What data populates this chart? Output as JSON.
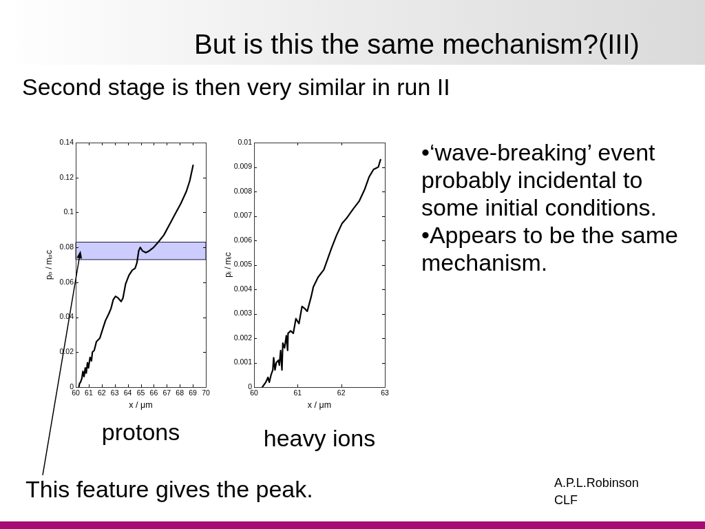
{
  "chart_data": [
    {
      "type": "other",
      "title": "But is this the same mechanism?(III)",
      "subtitle": "Second stage is then very similar in run II",
      "annotations": [
        "•‘wave-breaking’ event probably incidental to some initial conditions.",
        "•Appears to be the same mechanism.",
        "A.P.L.Robinson",
        "CLF"
      ]
    },
    {
      "type": "line",
      "xlabel": "x / μm",
      "ylabel": "pₚ / mₚc",
      "x": [
        60.24,
        60.29,
        60.38,
        60.47,
        60.55,
        60.64,
        60.73,
        60.81,
        60.9,
        60.98,
        61.1,
        61.21,
        61.28,
        61.42,
        61.59,
        61.85,
        62.02,
        62.28,
        62.54,
        62.71,
        62.88,
        63.06,
        63.26,
        63.49,
        63.63,
        63.83,
        64.09,
        64.35,
        64.56,
        64.7,
        64.84,
        64.96,
        65.13,
        65.39,
        65.65,
        65.99,
        66.34,
        66.77,
        67.2,
        67.63,
        68.07,
        68.5,
        68.76,
        69.02
      ],
      "series": [
        {
          "color": "#000000",
          "values": [
            0,
            0.002,
            0.003,
            0.005,
            0.009,
            0.006,
            0.011,
            0.008,
            0.014,
            0.011,
            0.017,
            0.015,
            0.02,
            0.021,
            0.026,
            0.028,
            0.032,
            0.038,
            0.042,
            0.045,
            0.05,
            0.052,
            0.051,
            0.049,
            0.051,
            0.059,
            0.064,
            0.067,
            0.068,
            0.071,
            0.078,
            0.08,
            0.078,
            0.077,
            0.078,
            0.08,
            0.083,
            0.087,
            0.093,
            0.099,
            0.105,
            0.112,
            0.118,
            0.127
          ]
        }
      ],
      "xlim": [
        60,
        70
      ],
      "ylim": [
        0,
        0.14
      ],
      "xticks": [
        60,
        61,
        62,
        63,
        64,
        65,
        66,
        67,
        68,
        69,
        70
      ],
      "yticks": [
        0,
        0.02,
        0.04,
        0.06,
        0.08,
        0.1,
        0.12,
        0.14
      ],
      "line_style": "solid",
      "bands": [
        {
          "axis": "y",
          "from": 0.073,
          "to": 0.083,
          "label": "This feature gives the peak.",
          "color": "#ccccff"
        }
      ],
      "annotations": [
        "protons"
      ]
    },
    {
      "type": "line",
      "xlabel": "x / μm",
      "ylabel": "pᵢ / mᵢc",
      "x": [
        60.19,
        60.27,
        60.32,
        60.35,
        60.39,
        60.43,
        60.45,
        60.48,
        60.51,
        60.56,
        60.58,
        60.61,
        60.64,
        60.66,
        60.7,
        60.74,
        60.77,
        60.78,
        60.84,
        60.9,
        60.96,
        61.03,
        61.1,
        61.17,
        61.22,
        61.31,
        61.36,
        61.47,
        61.6,
        61.7,
        61.78,
        61.89,
        62.02,
        62.12,
        62.28,
        62.41,
        62.54,
        62.64,
        62.74,
        62.85,
        62.9
      ],
      "series": [
        {
          "color": "#000000",
          "values": [
            0,
            0.0002,
            0.0004,
            0.0002,
            0.0005,
            0.0007,
            0.0012,
            0.0007,
            0.001,
            0.0011,
            0.0009,
            0.0015,
            0.0007,
            0.0018,
            0.0016,
            0.0021,
            0.0015,
            0.0022,
            0.0023,
            0.0022,
            0.0028,
            0.0026,
            0.0033,
            0.0032,
            0.0031,
            0.0037,
            0.0041,
            0.0045,
            0.0048,
            0.0053,
            0.0057,
            0.0062,
            0.0067,
            0.0069,
            0.0073,
            0.0076,
            0.0081,
            0.0086,
            0.0089,
            0.009,
            0.0093
          ]
        }
      ],
      "xlim": [
        60,
        63
      ],
      "ylim": [
        0,
        0.01
      ],
      "xticks": [
        60,
        61,
        62,
        63
      ],
      "yticks": [
        0,
        0.001,
        0.002,
        0.003,
        0.004,
        0.005,
        0.006,
        0.007,
        0.008,
        0.009,
        0.01
      ],
      "line_style": "solid",
      "annotations": [
        "heavy ions"
      ]
    }
  ]
}
